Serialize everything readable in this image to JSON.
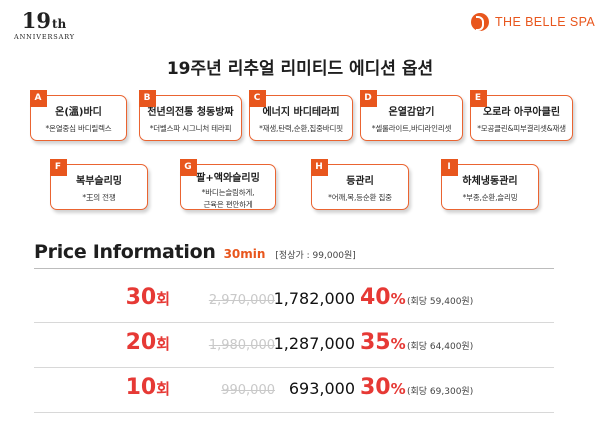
{
  "branding": {
    "anniversary_number": "19",
    "anniversary_suffix": "th",
    "anniversary_word": "ANNIVERSARY",
    "brand_name": "THE BELLE SPA",
    "accent_color": "#e8561d",
    "price_color": "#e63935"
  },
  "headline": "19주년 리추얼 리미티드 에디션 옵션",
  "options": [
    {
      "letter": "A",
      "title": "온(溫)바디",
      "desc": "*온열중심 바디릴렉스",
      "desc2": ""
    },
    {
      "letter": "B",
      "title": "천년의전통 청동방짜",
      "desc": "*더벨스파 시그니처 테라피",
      "desc2": ""
    },
    {
      "letter": "C",
      "title": "에너지 바디테라피",
      "desc": "*재생,탄력,순환,집중바디핏",
      "desc2": ""
    },
    {
      "letter": "D",
      "title": "온열감압기",
      "desc": "*셀룰라이트,바디라인리셋",
      "desc2": ""
    },
    {
      "letter": "E",
      "title": "오로라 아쿠아클린",
      "desc": "*모공클린&피부결리셋&재생",
      "desc2": ""
    },
    {
      "letter": "F",
      "title": "복부슬리밍",
      "desc": "*王의 전쟁",
      "desc2": ""
    },
    {
      "letter": "G",
      "title": "팔+액와슬리밍",
      "desc": "*바디는슬림하게,",
      "desc2": "근육은 편안하게"
    },
    {
      "letter": "H",
      "title": "등관리",
      "desc": "*어깨,목,등순환 집중",
      "desc2": ""
    },
    {
      "letter": "I",
      "title": "하체냉동관리",
      "desc": "*부종,순환,슬리밍",
      "desc2": ""
    }
  ],
  "price": {
    "title": "Price Information",
    "duration": "30min",
    "regular_price": "[정상가 : 99,000원]",
    "rows": [
      {
        "count": "30",
        "unit": "회",
        "original": "2,970,000",
        "sale": "1,782,000",
        "discount": "40",
        "pct": "%",
        "per_session": "(회당 59,400원)"
      },
      {
        "count": "20",
        "unit": "회",
        "original": "1,980,000",
        "sale": "1,287,000",
        "discount": "35",
        "pct": "%",
        "per_session": "(회당 64,400원)"
      },
      {
        "count": "10",
        "unit": "회",
        "original": "990,000",
        "sale": "693,000",
        "discount": "30",
        "pct": "%",
        "per_session": "(회당 69,300원)"
      }
    ]
  }
}
